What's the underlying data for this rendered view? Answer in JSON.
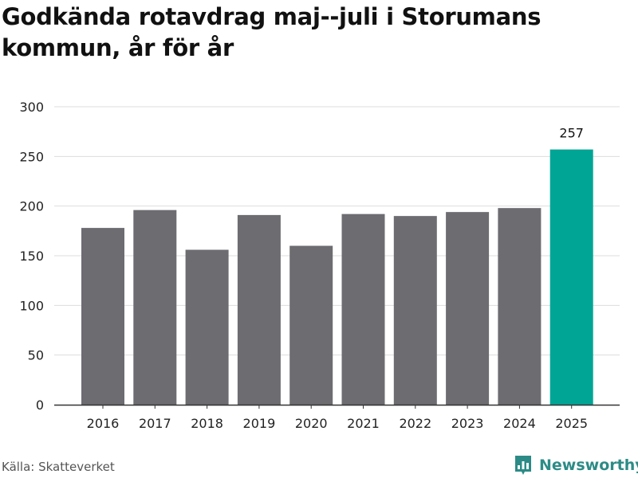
{
  "title": "Godkända rotavdrag maj--juli i Storumans kommun, år för år",
  "source": "Källa: Skatteverket",
  "brand": {
    "name": "Newsworthy",
    "icon": "bar-chart-logo-icon",
    "color": "#2c8b86"
  },
  "colors": {
    "bar": "#6d6c71",
    "highlight": "#00a596",
    "grid": "#dddddd",
    "axis": "#333333"
  },
  "chart_data": {
    "type": "bar",
    "categories": [
      "2016",
      "2017",
      "2018",
      "2019",
      "2020",
      "2021",
      "2022",
      "2023",
      "2024",
      "2025"
    ],
    "values": [
      178,
      196,
      156,
      191,
      160,
      192,
      190,
      194,
      198,
      257
    ],
    "highlight_index": 9,
    "data_labels": [
      {
        "index": 9,
        "text": "257"
      }
    ],
    "ylim": [
      0,
      300
    ],
    "yticks": [
      0,
      50,
      100,
      150,
      200,
      250,
      300
    ],
    "grid": true,
    "xlabel": "",
    "ylabel": ""
  }
}
